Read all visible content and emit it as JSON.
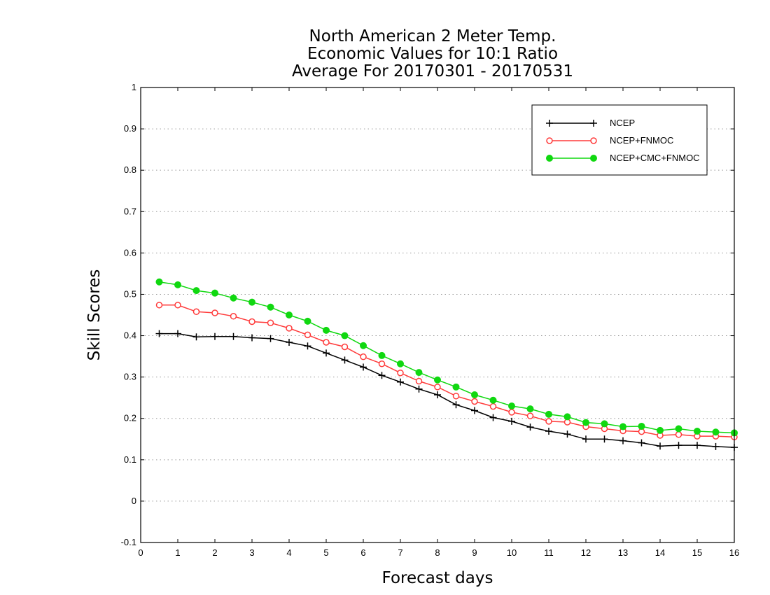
{
  "chart_data": {
    "type": "line",
    "title_lines": [
      "North American 2 Meter Temp.",
      "Economic Values for 10:1 Ratio",
      "Average For 20170301 - 20170531"
    ],
    "xlabel": "Forecast days",
    "ylabel": "Skill Scores",
    "xlim": [
      0,
      16
    ],
    "ylim": [
      -0.1,
      1
    ],
    "xticks": [
      0,
      1,
      2,
      3,
      4,
      5,
      6,
      7,
      8,
      9,
      10,
      11,
      12,
      13,
      14,
      15,
      16
    ],
    "yticks": [
      -0.1,
      0,
      0.1,
      0.2,
      0.3,
      0.4,
      0.5,
      0.6,
      0.7,
      0.8,
      0.9,
      1
    ],
    "ytick_labels": [
      "-0.1",
      "0",
      "0.1",
      "0.2",
      "0.3",
      "0.4",
      "0.5",
      "0.6",
      "0.7",
      "0.8",
      "0.9",
      "1"
    ],
    "grid": "horizontal dotted",
    "legend_position": "top-right",
    "x": [
      0.5,
      1.0,
      1.5,
      2.0,
      2.5,
      3.0,
      3.5,
      4.0,
      4.5,
      5.0,
      5.5,
      6.0,
      6.5,
      7.0,
      7.5,
      8.0,
      8.5,
      9.0,
      9.5,
      10.0,
      10.5,
      11.0,
      11.5,
      12.0,
      12.5,
      13.0,
      13.5,
      14.0,
      14.5,
      15.0,
      15.5,
      16.0
    ],
    "series": [
      {
        "name": "NCEP",
        "color": "#000000",
        "marker": "plus",
        "values": [
          0.405,
          0.405,
          0.397,
          0.398,
          0.398,
          0.395,
          0.393,
          0.384,
          0.375,
          0.358,
          0.341,
          0.324,
          0.304,
          0.288,
          0.271,
          0.257,
          0.233,
          0.219,
          0.202,
          0.193,
          0.179,
          0.169,
          0.162,
          0.15,
          0.15,
          0.146,
          0.141,
          0.133,
          0.135,
          0.135,
          0.132,
          0.13
        ]
      },
      {
        "name": "NCEP+FNMOC",
        "color": "#ff3b3b",
        "marker": "open-circle",
        "values": [
          0.474,
          0.474,
          0.458,
          0.455,
          0.447,
          0.434,
          0.431,
          0.418,
          0.402,
          0.384,
          0.373,
          0.349,
          0.332,
          0.31,
          0.29,
          0.276,
          0.254,
          0.241,
          0.229,
          0.215,
          0.206,
          0.193,
          0.191,
          0.18,
          0.175,
          0.17,
          0.168,
          0.159,
          0.161,
          0.157,
          0.157,
          0.155
        ]
      },
      {
        "name": "NCEP+CMC+FNMOC",
        "color": "#10d810",
        "marker": "filled-circle",
        "values": [
          0.53,
          0.523,
          0.509,
          0.503,
          0.491,
          0.481,
          0.469,
          0.45,
          0.435,
          0.413,
          0.4,
          0.376,
          0.352,
          0.332,
          0.311,
          0.293,
          0.276,
          0.257,
          0.244,
          0.23,
          0.223,
          0.21,
          0.204,
          0.19,
          0.187,
          0.18,
          0.181,
          0.171,
          0.175,
          0.169,
          0.167,
          0.165
        ]
      }
    ]
  }
}
